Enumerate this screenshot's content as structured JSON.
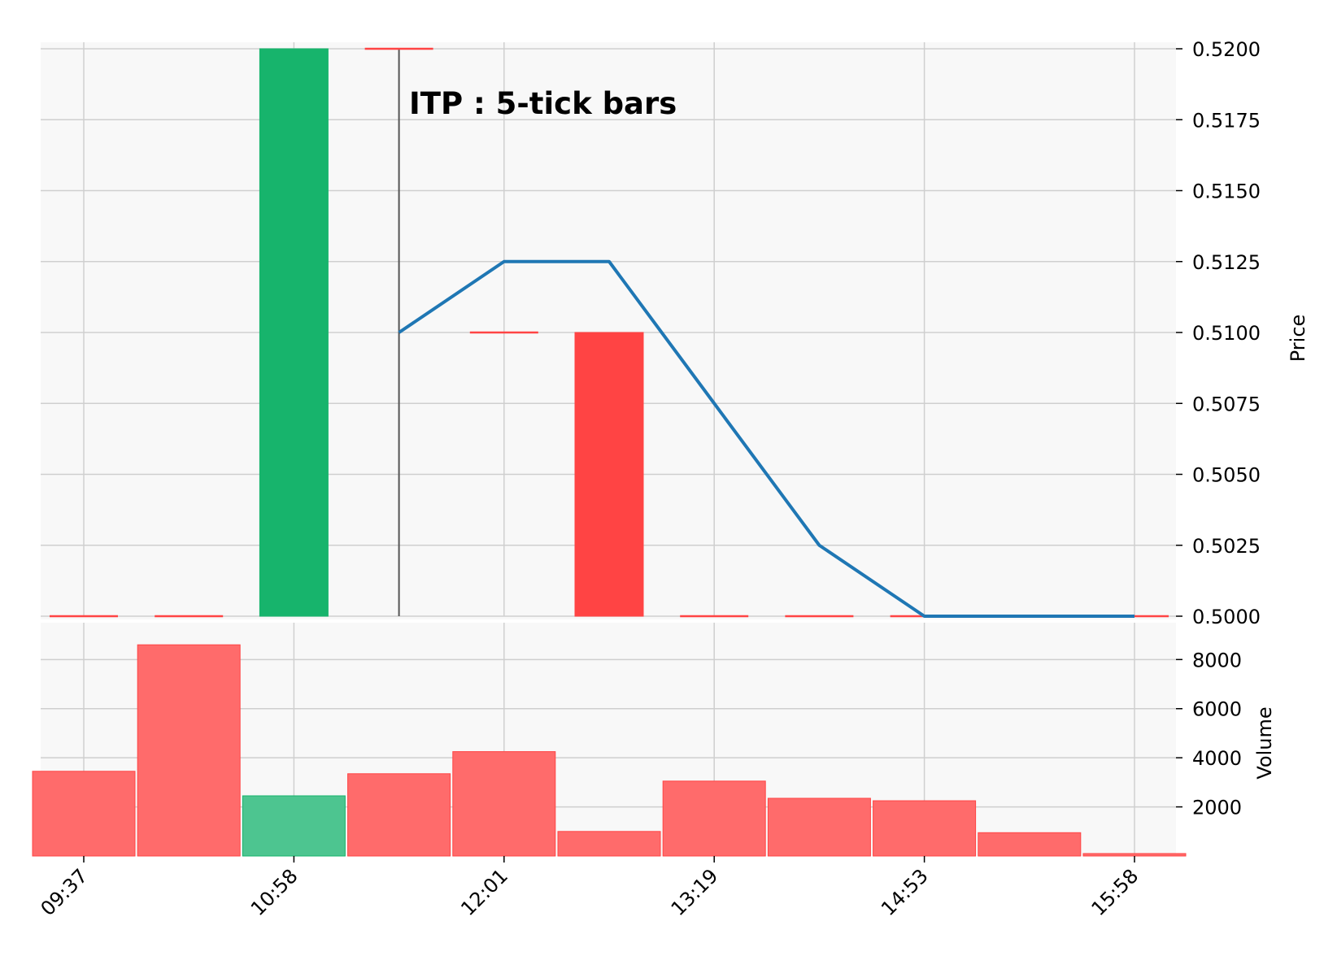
{
  "chart_data": {
    "type": "candlestick",
    "title": "ITP : 5-tick bars",
    "price_axis": {
      "label": "Price",
      "position": "right",
      "ylim": [
        0.5,
        0.52
      ],
      "ticks": [
        "0.5000",
        "0.5025",
        "0.5050",
        "0.5075",
        "0.5100",
        "0.5125",
        "0.5150",
        "0.5175",
        "0.5200"
      ]
    },
    "volume_axis": {
      "label": "Volume",
      "position": "right",
      "ylim": [
        0,
        9500
      ],
      "ticks": [
        "2000",
        "4000",
        "6000",
        "8000"
      ]
    },
    "x_tick_labels": [
      {
        "index": 0,
        "label": "09:37"
      },
      {
        "index": 2,
        "label": "10:58"
      },
      {
        "index": 4,
        "label": "12:01"
      },
      {
        "index": 6,
        "label": "13:19"
      },
      {
        "index": 8,
        "label": "14:53"
      },
      {
        "index": 10,
        "label": "15:58"
      }
    ],
    "grid": true,
    "bars": [
      {
        "open": 0.5,
        "high": 0.5,
        "low": 0.5,
        "close": 0.5,
        "volume": 3450
      },
      {
        "open": 0.5,
        "high": 0.5,
        "low": 0.5,
        "close": 0.5,
        "volume": 8600
      },
      {
        "open": 0.5,
        "high": 0.52,
        "low": 0.5,
        "close": 0.52,
        "volume": 2450
      },
      {
        "open": 0.52,
        "high": 0.52,
        "low": 0.5,
        "close": 0.52,
        "volume": 3350
      },
      {
        "open": 0.51,
        "high": 0.51,
        "low": 0.51,
        "close": 0.51,
        "volume": 4250
      },
      {
        "open": 0.51,
        "high": 0.51,
        "low": 0.5,
        "close": 0.5,
        "volume": 1000
      },
      {
        "open": 0.5,
        "high": 0.5,
        "low": 0.5,
        "close": 0.5,
        "volume": 3050
      },
      {
        "open": 0.5,
        "high": 0.5,
        "low": 0.5,
        "close": 0.5,
        "volume": 2350
      },
      {
        "open": 0.5,
        "high": 0.5,
        "low": 0.5,
        "close": 0.5,
        "volume": 2250
      },
      {
        "open": 0.5,
        "high": 0.5,
        "low": 0.5,
        "close": 0.5,
        "volume": 950
      },
      {
        "open": 0.5,
        "high": 0.5,
        "low": 0.5,
        "close": 0.5,
        "volume": 100
      }
    ],
    "moving_average": {
      "start_index": 3,
      "values": [
        0.51,
        0.5125,
        0.5125,
        0.5075,
        0.5025,
        0.5,
        0.5,
        0.5
      ]
    },
    "colors": {
      "up": "#17b46c",
      "down": "#ff4444",
      "volume_up": "#4dc590",
      "volume_down": "#ff6b6b",
      "ma": "#1f77b4",
      "panel_bg": "#f8f8f8",
      "grid": "#cfcfcf"
    }
  }
}
